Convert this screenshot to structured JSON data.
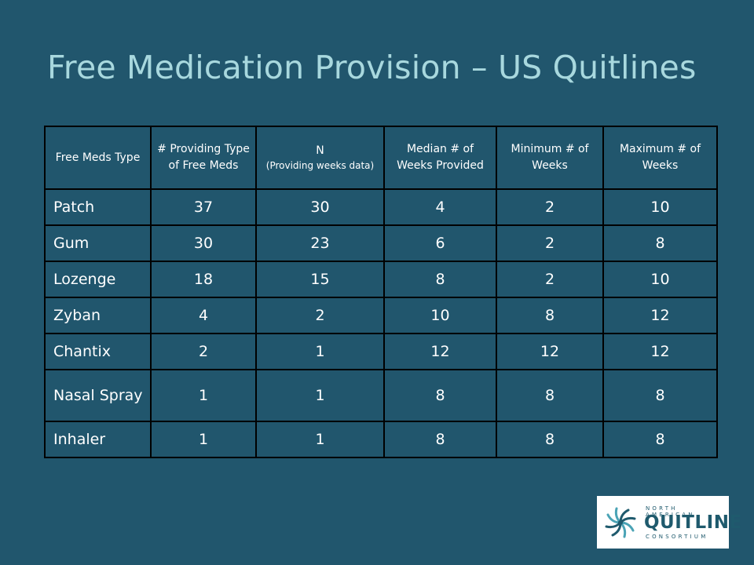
{
  "title": "Free Medication Provision – US Quitlines",
  "table": {
    "headers": [
      {
        "text": "Free Meds Type",
        "sub": ""
      },
      {
        "text": "# Providing Type of Free Meds",
        "sub": ""
      },
      {
        "text": "N",
        "sub": "(Providing weeks data)"
      },
      {
        "text": "Median # of Weeks Provided",
        "sub": ""
      },
      {
        "text": "Minimum # of Weeks",
        "sub": ""
      },
      {
        "text": "Maximum # of Weeks",
        "sub": ""
      }
    ],
    "rows": [
      [
        "Patch",
        "37",
        "30",
        "4",
        "2",
        "10"
      ],
      [
        "Gum",
        "30",
        "23",
        "6",
        "2",
        "8"
      ],
      [
        "Lozenge",
        "18",
        "15",
        "8",
        "2",
        "10"
      ],
      [
        "Zyban",
        "4",
        "2",
        "10",
        "8",
        "12"
      ],
      [
        "Chantix",
        "2",
        "1",
        "12",
        "12",
        "12"
      ],
      [
        "Nasal Spray",
        "1",
        "1",
        "8",
        "8",
        "8"
      ],
      [
        "Inhaler",
        "1",
        "1",
        "8",
        "8",
        "8"
      ]
    ]
  },
  "logo": {
    "line1": "NORTH AMERICAN",
    "line2": "QUITLINE",
    "line3": "CONSORTIUM",
    "colors": {
      "teal": "#1f5a6d",
      "accent": "#4aa3b5"
    }
  }
}
